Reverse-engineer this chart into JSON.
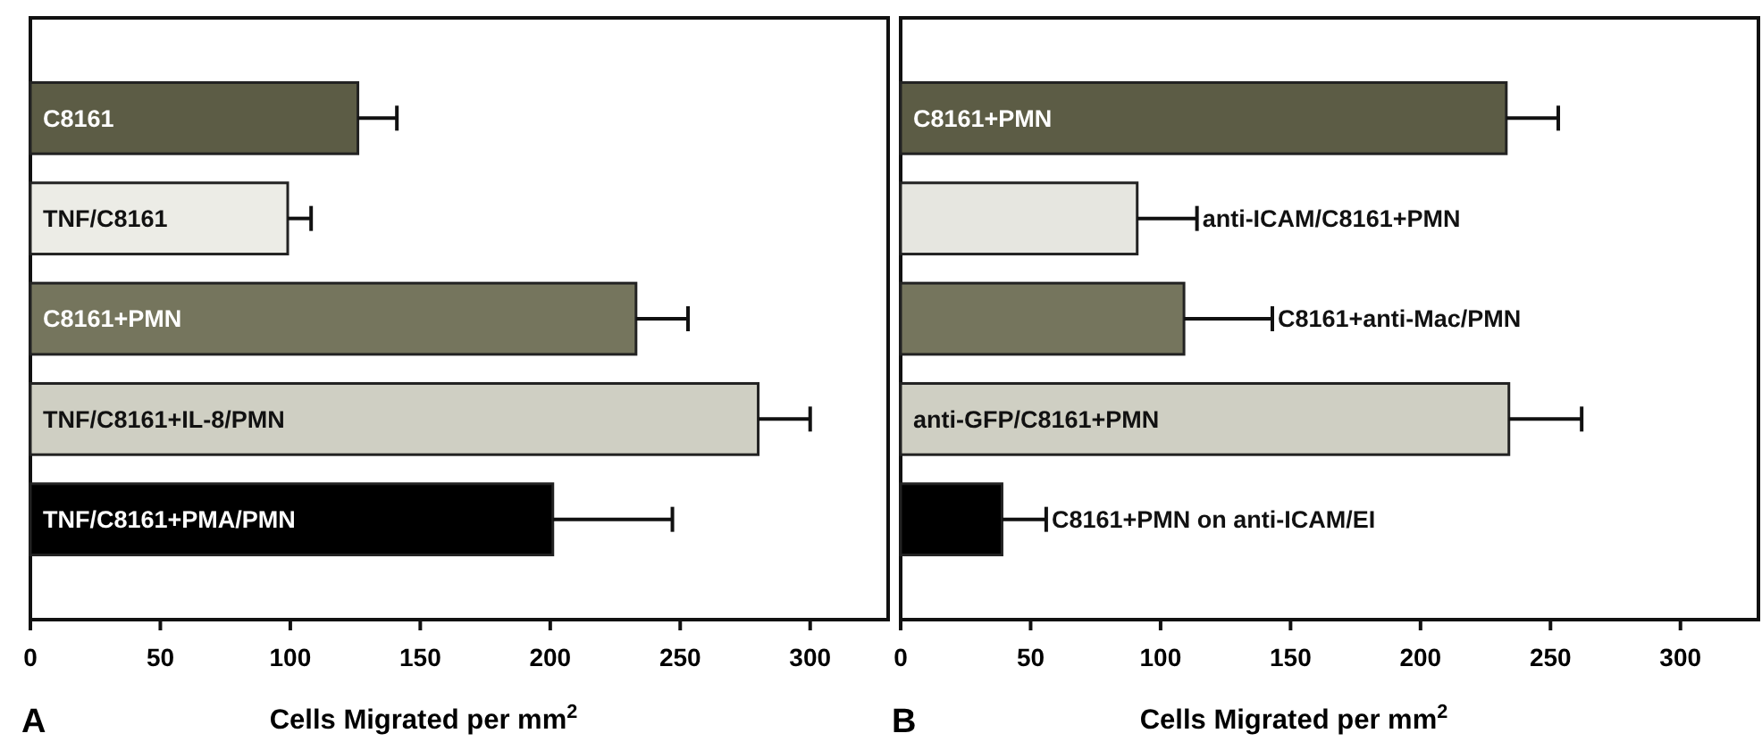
{
  "chart_data": [
    {
      "type": "bar",
      "orientation": "horizontal",
      "annotations": [
        "A"
      ],
      "xlabel": "Cells Migrated per mm$^{2}$",
      "categories": [
        "C8161",
        "TNF/C8161",
        "C8161+PMN",
        "TNF/C8161+IL-8/PMN",
        "TNF/C8161+PMA/PMN"
      ],
      "values": [
        126,
        99,
        233,
        280,
        201
      ],
      "errors": [
        15,
        9,
        20,
        20,
        46
      ],
      "colors": [
        "#5c5c45",
        "#ececE6",
        "#75755d",
        "#cfcfc3",
        "#000000"
      ],
      "xlim": [
        0,
        330
      ],
      "xticks": [
        0,
        50,
        100,
        150,
        200,
        250,
        300
      ],
      "grid": false
    },
    {
      "type": "bar",
      "orientation": "horizontal",
      "annotations": [
        "B"
      ],
      "xlabel": "Cells Migrated per mm$^{2}$",
      "categories": [
        "C8161+PMN",
        "anti-ICAM/C8161+PMN",
        "C8161+anti-Mac/PMN",
        "anti-GFP/C8161+PMN",
        "C8161+PMN on anti-ICAM/EI"
      ],
      "values": [
        233,
        91,
        109,
        234,
        39
      ],
      "errors": [
        20,
        23,
        34,
        28,
        17
      ],
      "colors": [
        "#5c5c45",
        "#e6e6e0",
        "#75755d",
        "#cfcfc3",
        "#000000"
      ],
      "xlim": [
        0,
        330
      ],
      "xticks": [
        0,
        50,
        100,
        150,
        200,
        250,
        300
      ],
      "grid": false
    }
  ]
}
